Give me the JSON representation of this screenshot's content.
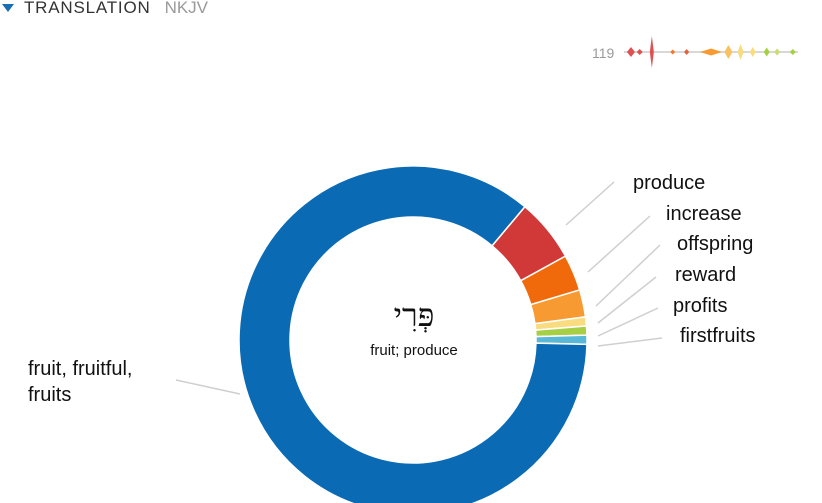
{
  "header": {
    "title": "TRANSLATION",
    "version": "NKJV"
  },
  "occurrence_count": "119",
  "center": {
    "word": "פְּרִי",
    "gloss": "fruit; produce"
  },
  "colors": {
    "fruit": "#0a6ab4",
    "produce": "#d13838",
    "increase": "#f06a0c",
    "offspring": "#f79a32",
    "reward": "#f9dc80",
    "profits": "#a6cf44",
    "firstfruits": "#59b8d6",
    "sparkline_line": "#cccccc"
  },
  "chart_data": {
    "type": "pie",
    "style": "donut",
    "slices": [
      {
        "label": "fruit, fruitful,\nfruits",
        "value": 102,
        "color": "#0a6ab4"
      },
      {
        "label": "produce",
        "value": 7,
        "color": "#d13838"
      },
      {
        "label": "increase",
        "value": 4,
        "color": "#f06a0c"
      },
      {
        "label": "offspring",
        "value": 3,
        "color": "#f79a32"
      },
      {
        "label": "reward",
        "value": 1,
        "color": "#f9dc80"
      },
      {
        "label": "profits",
        "value": 1,
        "color": "#a6cf44"
      },
      {
        "label": "firstfruits",
        "value": 1,
        "color": "#59b8d6"
      }
    ]
  },
  "sparkline": {
    "segments": [
      {
        "pos": 0.04,
        "h": 10,
        "w": 8,
        "color": "#e05050"
      },
      {
        "pos": 0.09,
        "h": 6,
        "w": 6,
        "color": "#e05050"
      },
      {
        "pos": 0.16,
        "h": 32,
        "w": 4,
        "color": "#e05050"
      },
      {
        "pos": 0.28,
        "h": 5,
        "w": 5,
        "color": "#f07a30"
      },
      {
        "pos": 0.36,
        "h": 6,
        "w": 5,
        "color": "#e06040"
      },
      {
        "pos": 0.5,
        "h": 7,
        "w": 22,
        "color": "#f79a32"
      },
      {
        "pos": 0.6,
        "h": 14,
        "w": 8,
        "color": "#f9c060"
      },
      {
        "pos": 0.67,
        "h": 16,
        "w": 6,
        "color": "#f9dc80"
      },
      {
        "pos": 0.74,
        "h": 10,
        "w": 6,
        "color": "#f9dc80"
      },
      {
        "pos": 0.82,
        "h": 9,
        "w": 6,
        "color": "#a6cf44"
      },
      {
        "pos": 0.88,
        "h": 7,
        "w": 6,
        "color": "#c9dd70"
      },
      {
        "pos": 0.97,
        "h": 6,
        "w": 6,
        "color": "#a6cf44"
      }
    ]
  }
}
